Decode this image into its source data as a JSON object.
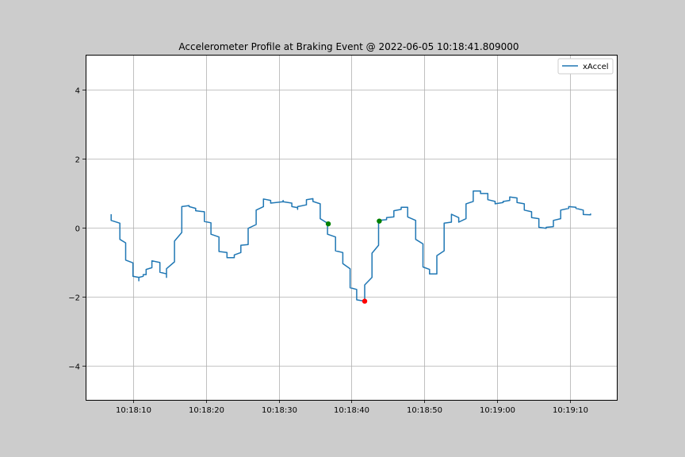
{
  "chart_data": {
    "type": "line",
    "title": "Accelerometer Profile at Braking Event @ 2022-06-05 10:18:41.809000",
    "xlabel": "",
    "ylabel": "",
    "xlim": [
      "10:18:03.500",
      "10:19:16.400"
    ],
    "ylim": [
      -5,
      5
    ],
    "grid": true,
    "legend_position": "top-right",
    "x_ticks": [
      "10:18:10",
      "10:18:20",
      "10:18:30",
      "10:18:40",
      "10:18:50",
      "10:19:00",
      "10:19:10"
    ],
    "y_ticks": [
      "4",
      "2",
      "0",
      "−2",
      "−4"
    ],
    "series": [
      {
        "name": "xAccel",
        "color": "#1f77b4",
        "step": true,
        "points": [
          [
            "10:18:07.000",
            0.38
          ],
          [
            "10:18:07.000",
            0.2
          ],
          [
            "10:18:08.200",
            0.12
          ],
          [
            "10:18:08.200",
            -0.35
          ],
          [
            "10:18:09.000",
            -0.45
          ],
          [
            "10:18:09.000",
            -0.95
          ],
          [
            "10:18:10.000",
            -1.03
          ],
          [
            "10:18:10.000",
            -1.42
          ],
          [
            "10:18:10.800",
            -1.45
          ],
          [
            "10:18:10.800",
            -1.55
          ],
          [
            "10:18:10.800",
            -1.45
          ],
          [
            "10:18:11.400",
            -1.42
          ],
          [
            "10:18:11.400",
            -1.37
          ],
          [
            "10:18:11.800",
            -1.37
          ],
          [
            "10:18:11.800",
            -1.22
          ],
          [
            "10:18:12.600",
            -1.17
          ],
          [
            "10:18:12.600",
            -0.97
          ],
          [
            "10:18:13.700",
            -1.02
          ],
          [
            "10:18:13.700",
            -1.3
          ],
          [
            "10:18:14.600",
            -1.35
          ],
          [
            "10:18:14.600",
            -1.45
          ],
          [
            "10:18:14.600",
            -1.2
          ],
          [
            "10:18:15.700",
            -1.0
          ],
          [
            "10:18:15.700",
            -0.4
          ],
          [
            "10:18:16.700",
            -0.15
          ],
          [
            "10:18:16.700",
            0.6
          ],
          [
            "10:18:17.700",
            0.63
          ],
          [
            "10:18:17.700",
            0.6
          ],
          [
            "10:18:18.600",
            0.55
          ],
          [
            "10:18:18.600",
            0.48
          ],
          [
            "10:18:19.800",
            0.45
          ],
          [
            "10:18:19.800",
            0.17
          ],
          [
            "10:18:20.700",
            0.13
          ],
          [
            "10:18:20.700",
            -0.2
          ],
          [
            "10:18:21.800",
            -0.28
          ],
          [
            "10:18:21.800",
            -0.7
          ],
          [
            "10:18:22.900",
            -0.73
          ],
          [
            "10:18:22.900",
            -0.88
          ],
          [
            "10:18:23.900",
            -0.88
          ],
          [
            "10:18:23.900",
            -0.8
          ],
          [
            "10:18:24.800",
            -0.73
          ],
          [
            "10:18:24.800",
            -0.52
          ],
          [
            "10:18:25.800",
            -0.5
          ],
          [
            "10:18:25.800",
            -0.03
          ],
          [
            "10:18:26.900",
            0.08
          ],
          [
            "10:18:26.900",
            0.5
          ],
          [
            "10:18:27.900",
            0.6
          ],
          [
            "10:18:27.900",
            0.82
          ],
          [
            "10:18:28.900",
            0.78
          ],
          [
            "10:18:28.900",
            0.7
          ],
          [
            "10:18:30.600",
            0.74
          ],
          [
            "10:18:30.600",
            0.78
          ],
          [
            "10:18:30.600",
            0.74
          ],
          [
            "10:18:31.800",
            0.7
          ],
          [
            "10:18:31.800",
            0.6
          ],
          [
            "10:18:32.600",
            0.57
          ],
          [
            "10:18:32.600",
            0.52
          ],
          [
            "10:18:32.600",
            0.6
          ],
          [
            "10:18:33.800",
            0.65
          ],
          [
            "10:18:33.800",
            0.8
          ],
          [
            "10:18:34.700",
            0.83
          ],
          [
            "10:18:34.700",
            0.75
          ],
          [
            "10:18:35.700",
            0.68
          ],
          [
            "10:18:35.700",
            0.25
          ],
          [
            "10:18:36.700",
            0.12
          ],
          [
            "10:18:36.700",
            -0.2
          ],
          [
            "10:18:37.800",
            -0.28
          ],
          [
            "10:18:37.800",
            -0.68
          ],
          [
            "10:18:38.800",
            -0.73
          ],
          [
            "10:18:38.800",
            -1.05
          ],
          [
            "10:18:39.800",
            -1.2
          ],
          [
            "10:18:39.800",
            -1.75
          ],
          [
            "10:18:40.700",
            -1.8
          ],
          [
            "10:18:40.700",
            -2.1
          ],
          [
            "10:18:41.800",
            -2.14
          ],
          [
            "10:18:41.800",
            -1.67
          ],
          [
            "10:18:42.800",
            -1.45
          ],
          [
            "10:18:42.800",
            -0.75
          ],
          [
            "10:18:43.700",
            -0.52
          ],
          [
            "10:18:43.700",
            0.2
          ],
          [
            "10:18:44.800",
            0.22
          ],
          [
            "10:18:44.800",
            0.28
          ],
          [
            "10:18:45.800",
            0.3
          ],
          [
            "10:18:45.800",
            0.48
          ],
          [
            "10:18:46.800",
            0.52
          ],
          [
            "10:18:46.800",
            0.58
          ],
          [
            "10:18:47.700",
            0.58
          ],
          [
            "10:18:47.700",
            0.3
          ],
          [
            "10:18:48.800",
            0.2
          ],
          [
            "10:18:48.800",
            -0.35
          ],
          [
            "10:18:49.800",
            -0.48
          ],
          [
            "10:18:49.800",
            -1.15
          ],
          [
            "10:18:50.700",
            -1.22
          ],
          [
            "10:18:50.700",
            -1.35
          ],
          [
            "10:18:51.700",
            -1.35
          ],
          [
            "10:18:51.700",
            -0.82
          ],
          [
            "10:18:52.700",
            -0.68
          ],
          [
            "10:18:52.700",
            0.12
          ],
          [
            "10:18:53.700",
            0.15
          ],
          [
            "10:18:53.700",
            0.38
          ],
          [
            "10:18:54.700",
            0.28
          ],
          [
            "10:18:54.700",
            0.15
          ],
          [
            "10:18:55.700",
            0.25
          ],
          [
            "10:18:55.700",
            0.68
          ],
          [
            "10:18:56.700",
            0.75
          ],
          [
            "10:18:56.700",
            1.05
          ],
          [
            "10:18:57.700",
            1.05
          ],
          [
            "10:18:57.700",
            0.98
          ],
          [
            "10:18:58.700",
            0.98
          ],
          [
            "10:18:58.700",
            0.8
          ],
          [
            "10:18:59.700",
            0.75
          ],
          [
            "10:18:59.700",
            0.68
          ],
          [
            "10:19:00.800",
            0.72
          ],
          [
            "10:19:00.800",
            0.75
          ],
          [
            "10:19:01.700",
            0.78
          ],
          [
            "10:19:01.700",
            0.88
          ],
          [
            "10:19:02.700",
            0.85
          ],
          [
            "10:19:02.700",
            0.72
          ],
          [
            "10:19:03.700",
            0.68
          ],
          [
            "10:19:03.700",
            0.5
          ],
          [
            "10:19:04.700",
            0.45
          ],
          [
            "10:19:04.700",
            0.28
          ],
          [
            "10:19:05.700",
            0.25
          ],
          [
            "10:19:05.700",
            0.0
          ],
          [
            "10:19:06.700",
            -0.03
          ],
          [
            "10:19:06.700",
            0.0
          ],
          [
            "10:19:07.700",
            0.02
          ],
          [
            "10:19:07.700",
            0.2
          ],
          [
            "10:19:08.700",
            0.25
          ],
          [
            "10:19:08.700",
            0.5
          ],
          [
            "10:19:09.800",
            0.55
          ],
          [
            "10:19:09.800",
            0.6
          ],
          [
            "10:19:10.800",
            0.58
          ],
          [
            "10:19:10.800",
            0.55
          ],
          [
            "10:19:11.800",
            0.5
          ],
          [
            "10:19:11.800",
            0.37
          ],
          [
            "10:19:12.800",
            0.36
          ],
          [
            "10:19:12.800",
            0.4
          ]
        ]
      }
    ],
    "markers": [
      {
        "x": "10:18:36.800",
        "y": 0.1,
        "color": "#008000"
      },
      {
        "x": "10:18:41.800",
        "y": -2.14,
        "color": "#ff0000"
      },
      {
        "x": "10:18:43.800",
        "y": 0.18,
        "color": "#008000"
      }
    ]
  }
}
